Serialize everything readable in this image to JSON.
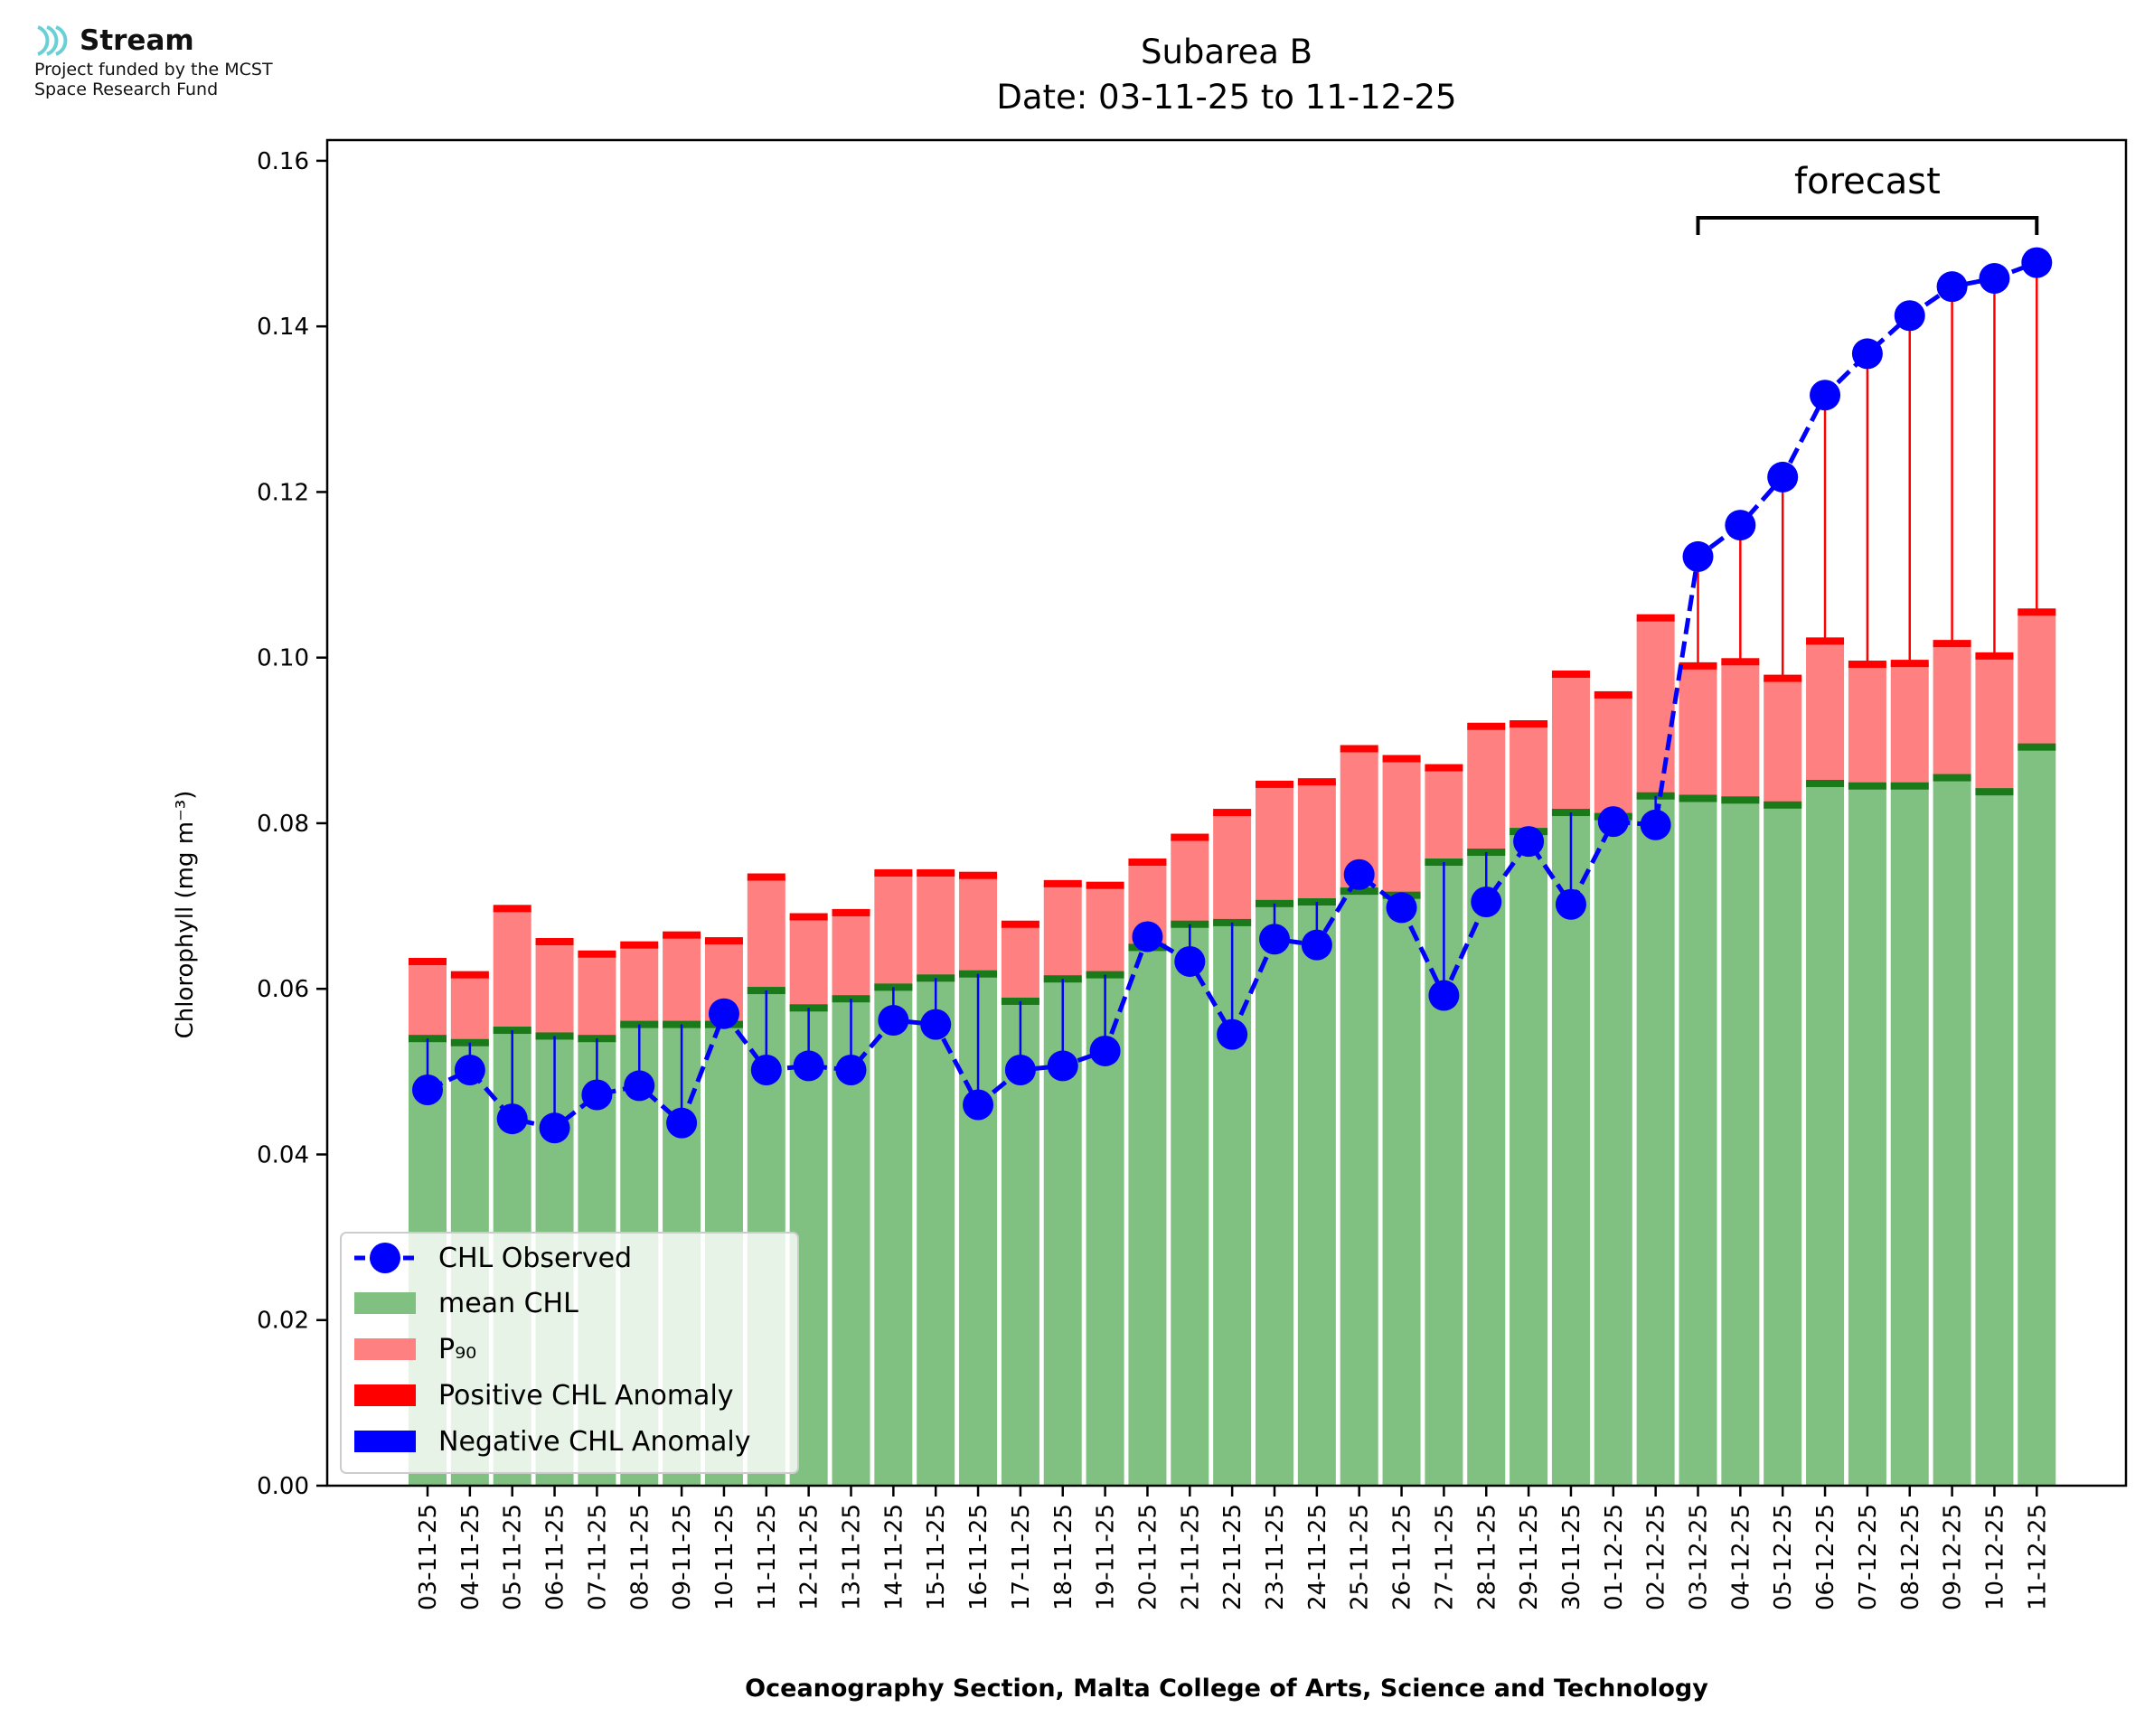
{
  "branding": {
    "logo_name": "Stream",
    "logo_line1": "Project funded by the MCST",
    "logo_line2": "Space Research Fund",
    "accent_color": "#6ad0d6"
  },
  "chart_data": {
    "type": "bar",
    "title": "Subarea B",
    "subtitle": "Date: 03-11-25 to 11-12-25",
    "xlabel": "Oceanography Section, Malta College of Arts, Science and Technology",
    "ylabel": "Chlorophyll (mg m⁻³)",
    "ylim": [
      0,
      0.1625
    ],
    "yticks": [
      "0.00",
      "0.02",
      "0.04",
      "0.06",
      "0.08",
      "0.10",
      "0.12",
      "0.14",
      "0.16"
    ],
    "grid": false,
    "legend_position": "lower-left",
    "annotation": {
      "text": "forecast",
      "start": "03-12-25",
      "end": "11-12-25"
    },
    "categories": [
      "03-11-25",
      "04-11-25",
      "05-11-25",
      "06-11-25",
      "07-11-25",
      "08-11-25",
      "09-11-25",
      "10-11-25",
      "11-11-25",
      "12-11-25",
      "13-11-25",
      "14-11-25",
      "15-11-25",
      "16-11-25",
      "17-11-25",
      "18-11-25",
      "19-11-25",
      "20-11-25",
      "21-11-25",
      "22-11-25",
      "23-11-25",
      "24-11-25",
      "25-11-25",
      "26-11-25",
      "27-11-25",
      "28-11-25",
      "29-11-25",
      "30-11-25",
      "01-12-25",
      "02-12-25",
      "03-12-25",
      "04-12-25",
      "05-12-25",
      "06-12-25",
      "07-12-25",
      "08-12-25",
      "09-12-25",
      "10-12-25",
      "11-12-25"
    ],
    "series": [
      {
        "name": "CHL Observed",
        "type": "line",
        "color": "#0000ff",
        "values": [
          0.0478,
          0.0502,
          0.0443,
          0.0432,
          0.0472,
          0.0483,
          0.0438,
          0.057,
          0.0502,
          0.0507,
          0.0502,
          0.0562,
          0.0557,
          0.046,
          0.0502,
          0.0507,
          0.0525,
          0.0663,
          0.0633,
          0.0545,
          0.066,
          0.0653,
          0.0738,
          0.0698,
          0.0592,
          0.0705,
          0.0778,
          0.0702,
          0.0802,
          0.0798,
          0.1122,
          0.116,
          0.1218,
          0.1317,
          0.1367,
          0.1413,
          0.1448,
          0.1458,
          0.1477
        ]
      },
      {
        "name": "mean CHL",
        "type": "bar",
        "color": "#80c080",
        "values": [
          0.054,
          0.0535,
          0.055,
          0.0543,
          0.054,
          0.0557,
          0.0557,
          0.0557,
          0.0598,
          0.0577,
          0.0588,
          0.0602,
          0.0613,
          0.0618,
          0.0585,
          0.0612,
          0.0617,
          0.065,
          0.0678,
          0.068,
          0.0703,
          0.0705,
          0.0718,
          0.0713,
          0.0753,
          0.0765,
          0.079,
          0.0813,
          0.0808,
          0.0833,
          0.083,
          0.0828,
          0.0822,
          0.0848,
          0.0845,
          0.0845,
          0.0855,
          0.0838,
          0.0892
        ]
      },
      {
        "name": "P₉₀",
        "type": "bar",
        "color": "#ff8080",
        "values": [
          0.0633,
          0.0617,
          0.0697,
          0.0657,
          0.0642,
          0.0653,
          0.0665,
          0.0658,
          0.0735,
          0.0687,
          0.0692,
          0.074,
          0.074,
          0.0737,
          0.0678,
          0.0727,
          0.0725,
          0.0753,
          0.0783,
          0.0813,
          0.0847,
          0.085,
          0.089,
          0.0878,
          0.0867,
          0.0917,
          0.092,
          0.098,
          0.0955,
          0.1048,
          0.099,
          0.0995,
          0.0975,
          0.102,
          0.0992,
          0.0993,
          0.1017,
          0.1002,
          0.1055
        ]
      },
      {
        "name": "Positive CHL Anomaly",
        "type": "anomaly",
        "color": "#ff0000"
      },
      {
        "name": "Negative CHL Anomaly",
        "type": "anomaly",
        "color": "#0000ff"
      }
    ]
  }
}
